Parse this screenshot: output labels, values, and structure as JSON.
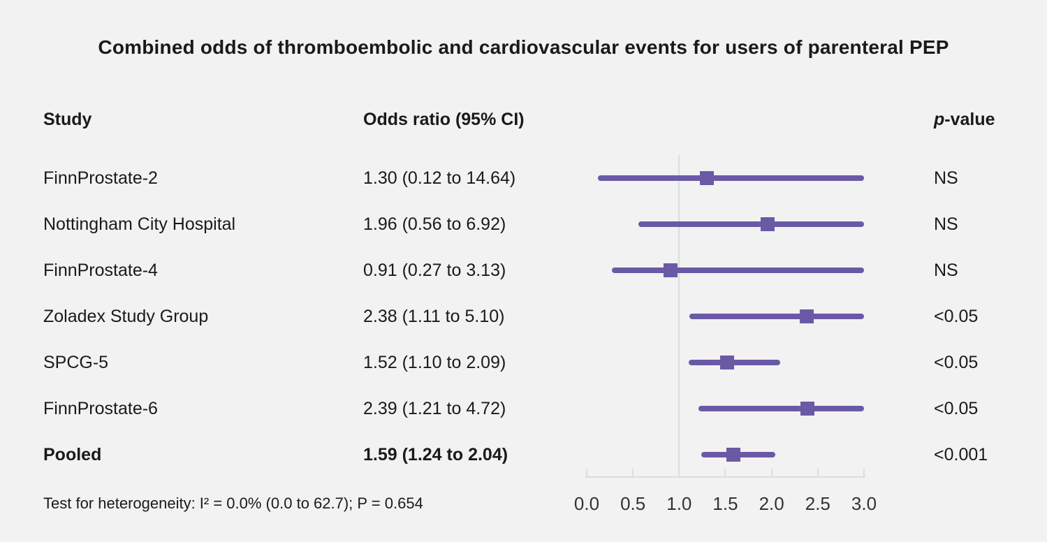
{
  "title": "Combined odds of thromboembolic and cardiovascular events for users of parenteral PEP",
  "columns": {
    "study": "Study",
    "odds_ratio": "Odds ratio (95% CI)",
    "p_value_prefix": "p",
    "p_value_suffix": "-value"
  },
  "footnote": "Test for heterogeneity: I² = 0.0% (0.0 to 62.7); P = 0.654",
  "chart_data": {
    "type": "forest",
    "title": "Combined odds of thromboembolic and cardiovascular events for users of parenteral PEP",
    "xlim": [
      0,
      3
    ],
    "reference_line": 1.0,
    "tick_values": [
      0,
      0.5,
      1,
      1.5,
      2,
      2.5,
      3
    ],
    "tick_labels": [
      "0.0",
      "0.5",
      "1.0",
      "1.5",
      "2.0",
      "2.5",
      "3.0"
    ],
    "studies": [
      {
        "name": "FinnProstate-2",
        "estimate": 1.3,
        "ci_low": 0.12,
        "ci_high": 14.64,
        "label": "1.30 (0.12 to 14.64)",
        "p_value": "NS",
        "bold": false
      },
      {
        "name": "Nottingham City Hospital",
        "estimate": 1.96,
        "ci_low": 0.56,
        "ci_high": 6.92,
        "label": "1.96 (0.56 to 6.92)",
        "p_value": "NS",
        "bold": false
      },
      {
        "name": "FinnProstate-4",
        "estimate": 0.91,
        "ci_low": 0.27,
        "ci_high": 3.13,
        "label": "0.91 (0.27 to 3.13)",
        "p_value": "NS",
        "bold": false
      },
      {
        "name": "Zoladex Study Group",
        "estimate": 2.38,
        "ci_low": 1.11,
        "ci_high": 5.1,
        "label": "2.38 (1.11 to 5.10)",
        "p_value": "<0.05",
        "bold": false
      },
      {
        "name": "SPCG-5",
        "estimate": 1.52,
        "ci_low": 1.1,
        "ci_high": 2.09,
        "label": "1.52 (1.10 to 2.09)",
        "p_value": "<0.05",
        "bold": false
      },
      {
        "name": "FinnProstate-6",
        "estimate": 2.39,
        "ci_low": 1.21,
        "ci_high": 4.72,
        "label": "2.39 (1.21 to 4.72)",
        "p_value": "<0.05",
        "bold": false
      },
      {
        "name": "Pooled",
        "estimate": 1.59,
        "ci_low": 1.24,
        "ci_high": 2.04,
        "label": "1.59 (1.24 to 2.04)",
        "p_value": "<0.001",
        "bold": true
      }
    ],
    "colors": {
      "marker": "#6a5aa5",
      "axis_line": "#d9dde3",
      "background": "#f2f2f2",
      "text": "#1a1a1a"
    }
  }
}
